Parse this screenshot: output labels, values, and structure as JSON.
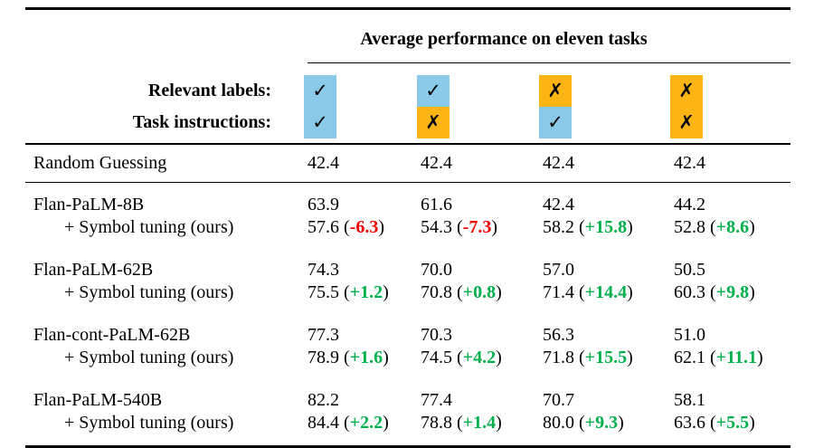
{
  "title": "Average performance on eleven tasks",
  "punct": {
    "open": "(",
    "close": ")"
  },
  "glyphs": {
    "check": "✓",
    "cross": "✗"
  },
  "colors": {
    "check_box_bg": "#8BC9E8",
    "cross_box_bg": "#FCB514",
    "positive_delta": "#00B04A",
    "negative_delta": "#F50000",
    "rule": "#000000"
  },
  "header": {
    "relevant_labels": "Relevant labels:",
    "task_instructions": "Task instructions:",
    "conditions": [
      {
        "relevant_labels": "check",
        "task_instructions": "check"
      },
      {
        "relevant_labels": "check",
        "task_instructions": "cross"
      },
      {
        "relevant_labels": "cross",
        "task_instructions": "check"
      },
      {
        "relevant_labels": "cross",
        "task_instructions": "cross"
      }
    ]
  },
  "baseline": {
    "label": "Random Guessing",
    "values": [
      "42.4",
      "42.4",
      "42.4",
      "42.4"
    ]
  },
  "groups": [
    {
      "model": "Flan-PaLM-8B",
      "base_values": [
        "63.9",
        "61.6",
        "42.4",
        "44.2"
      ],
      "tuned_label": "+ Symbol tuning (ours)",
      "tuned": [
        {
          "value": "57.6",
          "delta": "-6.3",
          "sign": "negative"
        },
        {
          "value": "54.3",
          "delta": "-7.3",
          "sign": "negative"
        },
        {
          "value": "58.2",
          "delta": "+15.8",
          "sign": "positive"
        },
        {
          "value": "52.8",
          "delta": "+8.6",
          "sign": "positive"
        }
      ]
    },
    {
      "model": "Flan-PaLM-62B",
      "base_values": [
        "74.3",
        "70.0",
        "57.0",
        "50.5"
      ],
      "tuned_label": "+ Symbol tuning (ours)",
      "tuned": [
        {
          "value": "75.5",
          "delta": "+1.2",
          "sign": "positive"
        },
        {
          "value": "70.8",
          "delta": "+0.8",
          "sign": "positive"
        },
        {
          "value": "71.4",
          "delta": "+14.4",
          "sign": "positive"
        },
        {
          "value": "60.3",
          "delta": "+9.8",
          "sign": "positive"
        }
      ]
    },
    {
      "model": "Flan-cont-PaLM-62B",
      "base_values": [
        "77.3",
        "70.3",
        "56.3",
        "51.0"
      ],
      "tuned_label": "+ Symbol tuning (ours)",
      "tuned": [
        {
          "value": "78.9",
          "delta": "+1.6",
          "sign": "positive"
        },
        {
          "value": "74.5",
          "delta": "+4.2",
          "sign": "positive"
        },
        {
          "value": "71.8",
          "delta": "+15.5",
          "sign": "positive"
        },
        {
          "value": "62.1",
          "delta": "+11.1",
          "sign": "positive"
        }
      ]
    },
    {
      "model": "Flan-PaLM-540B",
      "base_values": [
        "82.2",
        "77.4",
        "70.7",
        "58.1"
      ],
      "tuned_label": "+ Symbol tuning (ours)",
      "tuned": [
        {
          "value": "84.4",
          "delta": "+2.2",
          "sign": "positive"
        },
        {
          "value": "78.8",
          "delta": "+1.4",
          "sign": "positive"
        },
        {
          "value": "80.0",
          "delta": "+9.3",
          "sign": "positive"
        },
        {
          "value": "63.6",
          "delta": "+5.5",
          "sign": "positive"
        }
      ]
    }
  ]
}
